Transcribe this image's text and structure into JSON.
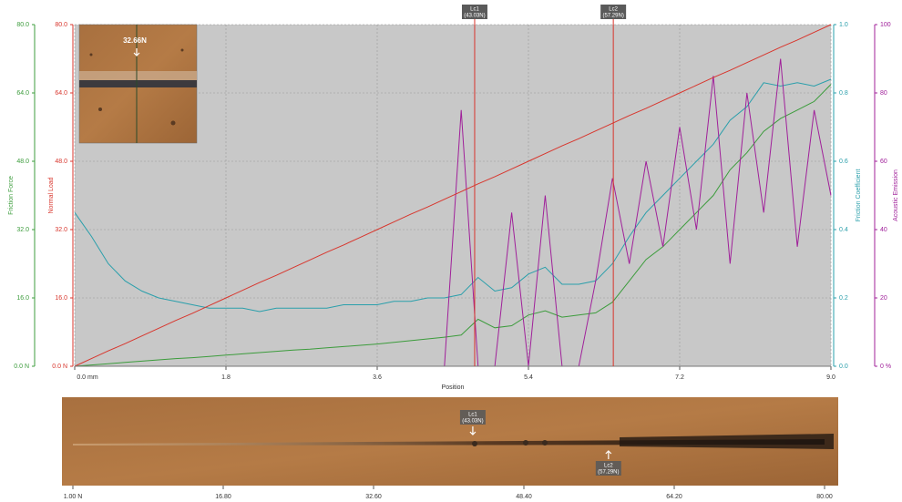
{
  "chart_data": {
    "type": "line",
    "x_title": "Position",
    "xlim": [
      0,
      9
    ],
    "xticks": [
      {
        "value": 0,
        "label": "0.0 mm"
      },
      1.8,
      3.6,
      5.4,
      7.2,
      {
        "value": 9,
        "label": "9.0"
      }
    ],
    "grid": true,
    "y_axes": [
      {
        "title": "Friction Force",
        "color": "#3c9c3c",
        "lim": [
          0,
          80
        ],
        "ticks": [
          {
            "value": 0,
            "label": "0.0 N"
          },
          {
            "value": 16,
            "label": "16.0"
          },
          {
            "value": 32,
            "label": "32.0"
          },
          {
            "value": 48,
            "label": "48.0"
          },
          {
            "value": 64,
            "label": "64.0"
          },
          {
            "value": 80,
            "label": "80.0"
          }
        ]
      },
      {
        "title": "Normal Load",
        "color": "#d8352c",
        "lim": [
          0,
          80
        ],
        "ticks": [
          {
            "value": 0,
            "label": "0.0 N"
          },
          {
            "value": 16,
            "label": "16.0"
          },
          {
            "value": 32,
            "label": "32.0"
          },
          {
            "value": 48,
            "label": "48.0"
          },
          {
            "value": 64,
            "label": "64.0"
          },
          {
            "value": 80,
            "label": "80.0"
          }
        ]
      },
      {
        "title": "Friction Coefficient",
        "color": "#2a9fab",
        "lim": [
          0,
          1
        ],
        "ticks": [
          {
            "value": 0,
            "label": "0.0"
          },
          0.2,
          0.4,
          0.6,
          0.8,
          {
            "value": 1,
            "label": "1.0"
          }
        ]
      },
      {
        "title": "Acoustic Emission",
        "color": "#a0209a",
        "lim": [
          0,
          100
        ],
        "ticks": [
          {
            "value": 0,
            "label": "0 %"
          },
          20,
          40,
          60,
          80,
          100
        ]
      }
    ],
    "x": [
      0,
      0.2,
      0.4,
      0.6,
      0.8,
      1.0,
      1.2,
      1.4,
      1.6,
      1.8,
      2.0,
      2.2,
      2.4,
      2.6,
      2.8,
      3.0,
      3.2,
      3.4,
      3.6,
      3.8,
      4.0,
      4.2,
      4.4,
      4.6,
      4.8,
      5.0,
      5.2,
      5.4,
      5.6,
      5.8,
      6.0,
      6.2,
      6.4,
      6.6,
      6.8,
      7.0,
      7.2,
      7.4,
      7.6,
      7.8,
      8.0,
      8.2,
      8.4,
      8.6,
      8.8,
      9.0
    ],
    "series": [
      {
        "name": "Friction Force",
        "axis": 0,
        "color": "#3c9c3c",
        "values": [
          0,
          0.3,
          0.6,
          0.9,
          1.2,
          1.5,
          1.8,
          2.0,
          2.3,
          2.6,
          2.9,
          3.2,
          3.5,
          3.8,
          4.0,
          4.3,
          4.6,
          4.9,
          5.2,
          5.6,
          6.0,
          6.4,
          6.8,
          7.3,
          11,
          9,
          9.5,
          12,
          13,
          11.5,
          12,
          12.5,
          15,
          20,
          25,
          28,
          32,
          36,
          40,
          46,
          50,
          55,
          58,
          60,
          62,
          66
        ]
      },
      {
        "name": "Friction Coefficient",
        "axis": 2,
        "color": "#2a9fab",
        "values": [
          0.45,
          0.38,
          0.3,
          0.25,
          0.22,
          0.2,
          0.19,
          0.18,
          0.17,
          0.17,
          0.17,
          0.16,
          0.17,
          0.17,
          0.17,
          0.17,
          0.18,
          0.18,
          0.18,
          0.19,
          0.19,
          0.2,
          0.2,
          0.21,
          0.26,
          0.22,
          0.23,
          0.27,
          0.29,
          0.24,
          0.24,
          0.25,
          0.3,
          0.38,
          0.45,
          0.5,
          0.55,
          0.6,
          0.65,
          0.72,
          0.76,
          0.83,
          0.82,
          0.83,
          0.82,
          0.84
        ]
      },
      {
        "name": "Acoustic Emission",
        "axis": 3,
        "color": "#a0209a",
        "values": [
          0,
          0,
          0,
          0,
          0,
          0,
          0,
          0,
          0,
          0,
          0,
          0,
          0,
          0,
          0,
          0,
          0,
          0,
          0,
          0,
          0,
          0,
          0,
          75,
          0,
          0,
          45,
          0,
          50,
          0,
          0,
          25,
          55,
          30,
          60,
          35,
          70,
          40,
          85,
          30,
          80,
          45,
          90,
          35,
          75,
          50
        ]
      },
      {
        "name": "Normal Load",
        "axis": 1,
        "color": "#d8352c",
        "values": [
          0,
          1.8,
          3.6,
          5.3,
          7.1,
          8.9,
          10.7,
          12.4,
          14.2,
          16.0,
          17.8,
          19.6,
          21.3,
          23.1,
          24.9,
          26.7,
          28.4,
          30.2,
          32.0,
          33.8,
          35.6,
          37.3,
          39.1,
          40.9,
          42.7,
          44.4,
          46.2,
          48.0,
          49.8,
          51.6,
          53.3,
          55.1,
          56.9,
          58.7,
          60.4,
          62.2,
          64.0,
          65.8,
          67.6,
          69.3,
          71.1,
          72.9,
          74.7,
          76.4,
          78.2,
          80.0
        ]
      }
    ],
    "critical_loads": [
      {
        "name": "Lc1",
        "value": 43.03,
        "label": "(43.03N)",
        "position": 4.76
      },
      {
        "name": "Lc2",
        "value": 57.29,
        "label": "(57.29N)",
        "position": 6.41
      }
    ],
    "inset_label": "32.66N",
    "strip": {
      "xlim": [
        1,
        80
      ],
      "xticks": [
        {
          "value": 1,
          "label": "1.00 N"
        },
        {
          "value": 16.8,
          "label": "16.80"
        },
        {
          "value": 32.6,
          "label": "32.60"
        },
        {
          "value": 48.4,
          "label": "48.40"
        },
        {
          "value": 64.2,
          "label": "64.20"
        },
        {
          "value": 80,
          "label": "80.00"
        }
      ]
    }
  }
}
